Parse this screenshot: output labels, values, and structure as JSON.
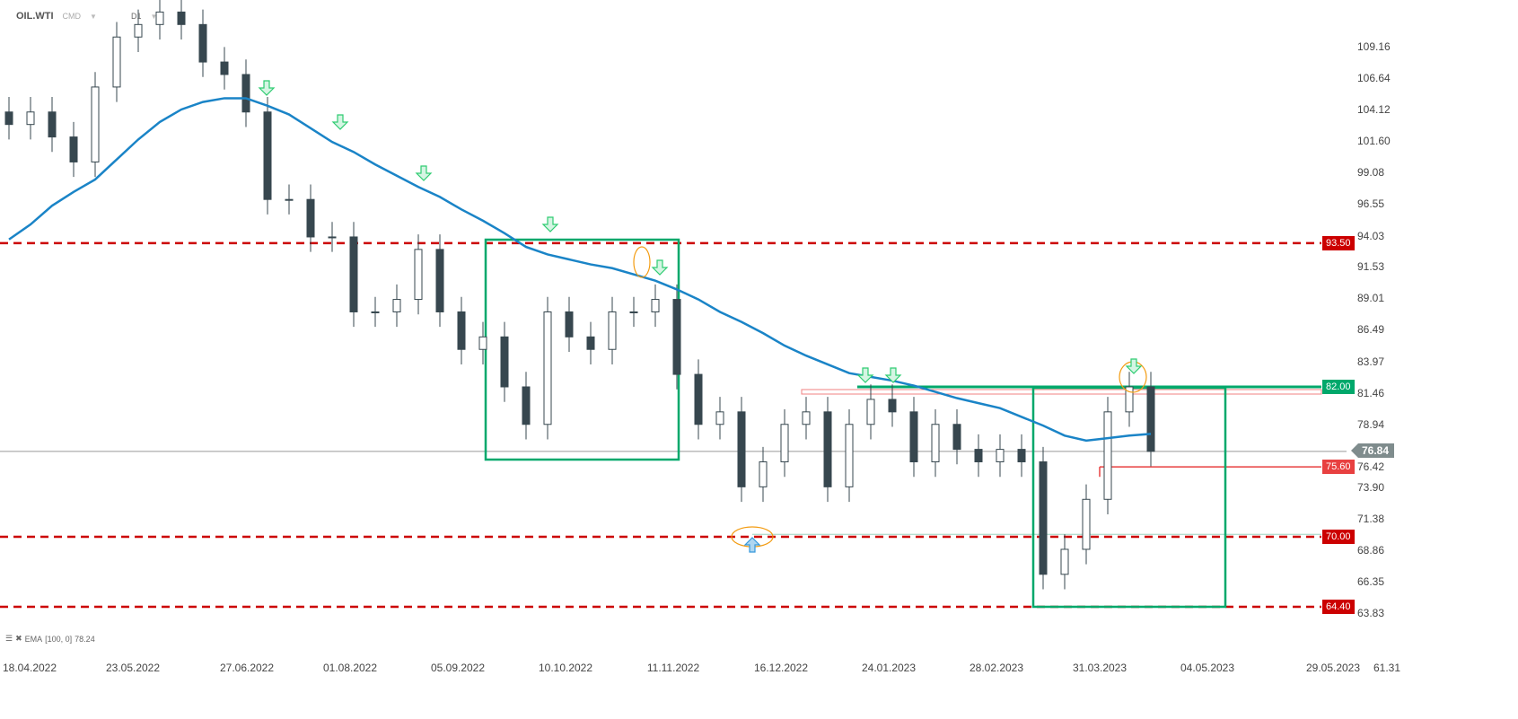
{
  "header": {
    "symbol": "OIL.WTI",
    "market": "CMD",
    "timeframe": "D1"
  },
  "indicator_legend": {
    "label": "EMA",
    "params": "[100,  0]",
    "value": "78.24"
  },
  "y_ticks": [
    "109.16",
    "106.64",
    "104.12",
    "101.60",
    "99.08",
    "96.55",
    "94.03",
    "91.53",
    "89.01",
    "86.49",
    "83.97",
    "81.46",
    "78.94",
    "76.42",
    "73.90",
    "71.38",
    "68.86",
    "66.35",
    "63.83",
    "61.31"
  ],
  "x_ticks": [
    "18.04.2022",
    "23.05.2022",
    "27.06.2022",
    "01.08.2022",
    "05.09.2022",
    "10.10.2022",
    "11.11.2022",
    "16.12.2022",
    "24.01.2023",
    "28.02.2023",
    "31.03.2023",
    "04.05.2023",
    "29.05.2023"
  ],
  "level_tags": [
    {
      "label": "93.50",
      "price": 93.5,
      "color": "#cc0000"
    },
    {
      "label": "82.00",
      "price": 82.0,
      "color": "#00a86b"
    },
    {
      "label": "75.60",
      "price": 75.6,
      "color": "#e84040"
    },
    {
      "label": "70.00",
      "price": 70.0,
      "color": "#cc0000"
    },
    {
      "label": "64.40",
      "price": 64.4,
      "color": "#cc0000"
    }
  ],
  "current_price": "76.84",
  "colors": {
    "candle": "#37474f",
    "ema": "#1a84c7",
    "support_resistance": "#cc0000",
    "box": "#00a86b",
    "arrow_down": "#2ecc71",
    "arrow_up": "#3498db",
    "highlight": "#f39c12"
  },
  "chart_data": {
    "type": "line",
    "title": "",
    "note_series_type": "candlestick price with EMA overlay",
    "x_start": "11.04.2022",
    "x_step": "1 week",
    "series": [
      {
        "name": "OIL.WTI",
        "values": [
          103,
          104,
          102,
          100,
          106,
          110,
          111,
          112,
          111,
          108,
          107,
          104,
          97,
          97,
          94,
          94,
          88,
          88,
          89,
          93,
          88,
          85,
          86,
          82,
          79,
          88,
          86,
          85,
          88,
          88,
          89,
          83,
          79,
          80,
          74,
          76,
          79,
          80,
          74,
          79,
          81,
          80,
          76,
          79,
          77,
          76,
          77,
          76,
          67,
          69,
          73,
          80,
          82,
          76.84
        ]
      },
      {
        "name": "EMA",
        "values": [
          93.8,
          95,
          96.5,
          97.6,
          98.6,
          100.2,
          101.8,
          103.2,
          104.2,
          104.8,
          105.1,
          105.1,
          104.5,
          103.8,
          102.7,
          101.6,
          100.8,
          99.8,
          98.9,
          98.0,
          97.2,
          96.2,
          95.3,
          94.3,
          93.2,
          92.6,
          92.2,
          91.8,
          91.5,
          91.0,
          90.5,
          89.8,
          89.0,
          88.0,
          87.2,
          86.3,
          85.3,
          84.5,
          83.8,
          83.1,
          82.8,
          82.5,
          82.1,
          81.6,
          81.1,
          80.7,
          80.3,
          79.6,
          78.9,
          78.1,
          77.7,
          77.9,
          78.1,
          78.24
        ]
      }
    ],
    "ylim": [
      61.31,
      111
    ],
    "grid": false,
    "levels": [
      93.5,
      82.0,
      75.6,
      70.0,
      64.4
    ]
  }
}
